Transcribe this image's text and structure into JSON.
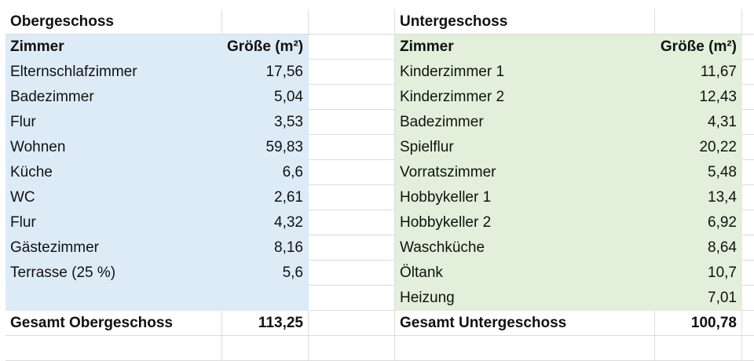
{
  "colors": {
    "upper_fill": "#ddebf7",
    "lower_fill": "#e2efda",
    "gridline": "#dcdcdc"
  },
  "upper": {
    "title": "Obergeschoss",
    "header": {
      "room": "Zimmer",
      "size": "Größe (m²)"
    },
    "rows": [
      {
        "room": "Elternschlafzimmer",
        "size": "17,56"
      },
      {
        "room": "Badezimmer",
        "size": "5,04"
      },
      {
        "room": "Flur",
        "size": "3,53"
      },
      {
        "room": "Wohnen",
        "size": "59,83"
      },
      {
        "room": "Küche",
        "size": "6,6"
      },
      {
        "room": "WC",
        "size": "2,61"
      },
      {
        "room": "Flur",
        "size": "4,32"
      },
      {
        "room": "Gästezimmer",
        "size": "8,16"
      },
      {
        "room": "Terrasse (25 %)",
        "size": "5,6"
      }
    ],
    "total": {
      "label": "Gesamt Obergeschoss",
      "value": "113,25"
    }
  },
  "lower": {
    "title": "Untergeschoss",
    "header": {
      "room": "Zimmer",
      "size": "Größe (m²)"
    },
    "rows": [
      {
        "room": "Kinderzimmer 1",
        "size": "11,67"
      },
      {
        "room": "Kinderzimmer 2",
        "size": "12,43"
      },
      {
        "room": "Badezimmer",
        "size": "4,31"
      },
      {
        "room": "Spielflur",
        "size": "20,22"
      },
      {
        "room": "Vorratszimmer",
        "size": "5,48"
      },
      {
        "room": "Hobbykeller 1",
        "size": "13,4"
      },
      {
        "room": "Hobbykeller 2",
        "size": "6,92"
      },
      {
        "room": "Waschküche",
        "size": "8,64"
      },
      {
        "room": "Öltank",
        "size": "10,7"
      },
      {
        "room": "Heizung",
        "size": "7,01"
      }
    ],
    "total": {
      "label": "Gesamt Untergeschoss",
      "value": "100,78"
    }
  }
}
